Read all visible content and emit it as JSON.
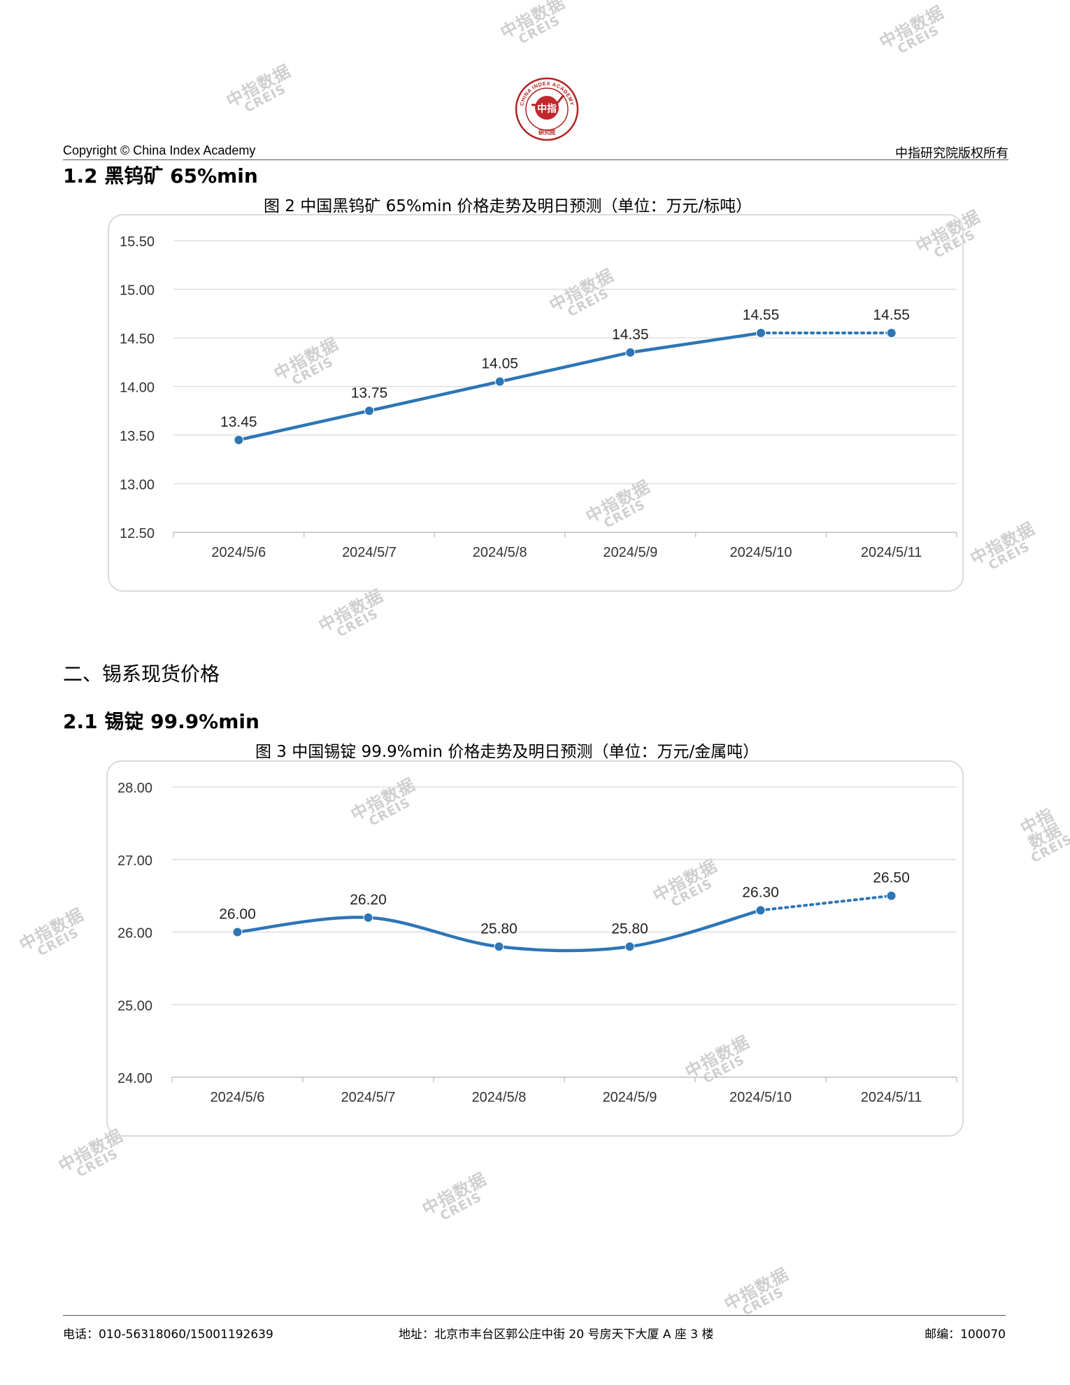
{
  "watermark": {
    "line1": "中指数据",
    "line2": "CREIS"
  },
  "header": {
    "logo_ring_text": "CHINA INDEX ACADEMY",
    "logo_center_text": "中指",
    "logo_bottom_text": "研究院",
    "copyright": "Copyright © China Index Academy",
    "rights": "中指研究院版权所有"
  },
  "section_1_2": {
    "heading": "1.2 黑钨矿 65%min"
  },
  "figure2": {
    "title": "图 2 中国黑钨矿 65%min 价格走势及明日预测（单位：万元/标吨）"
  },
  "section_2": {
    "heading": "二、锡系现货价格"
  },
  "section_2_1": {
    "heading": "2.1 锡锭 99.9%min"
  },
  "figure3": {
    "title": "图 3 中国锡锭 99.9%min 价格走势及明日预测（单位：万元/金属吨）"
  },
  "chart_data": [
    {
      "type": "line",
      "categories": [
        "2024/5/6",
        "2024/5/7",
        "2024/5/8",
        "2024/5/9",
        "2024/5/10",
        "2024/5/11"
      ],
      "values": [
        13.45,
        13.75,
        14.05,
        14.35,
        14.55,
        14.55
      ],
      "value_labels": [
        "13.45",
        "13.75",
        "14.05",
        "14.35",
        "14.55",
        "14.55"
      ],
      "forecast_from_index": 4,
      "ylim": [
        12.5,
        15.5
      ],
      "yticks": [
        "12.50",
        "13.00",
        "13.50",
        "14.00",
        "14.50",
        "15.00",
        "15.50"
      ],
      "yticks_values": [
        12.5,
        13.0,
        13.5,
        14.0,
        14.5,
        15.0,
        15.5
      ],
      "grid": true,
      "smooth": false,
      "color": "#2e75b6"
    },
    {
      "type": "line",
      "categories": [
        "2024/5/6",
        "2024/5/7",
        "2024/5/8",
        "2024/5/9",
        "2024/5/10",
        "2024/5/11"
      ],
      "values": [
        26.0,
        26.2,
        25.8,
        25.8,
        26.3,
        26.5
      ],
      "value_labels": [
        "26.00",
        "26.20",
        "25.80",
        "25.80",
        "26.30",
        "26.50"
      ],
      "forecast_from_index": 4,
      "ylim": [
        24.0,
        28.0
      ],
      "yticks": [
        "24.00",
        "25.00",
        "26.00",
        "27.00",
        "28.00"
      ],
      "yticks_values": [
        24,
        25,
        26,
        27,
        28
      ],
      "grid": true,
      "smooth": true,
      "color": "#2e75b6"
    }
  ],
  "footer": {
    "phone": "电话：010-56318060/15001192639",
    "address": "地址：北京市丰台区郭公庄中街 20 号房天下大厦 A 座 3 楼",
    "postcode": "邮编：100070"
  }
}
